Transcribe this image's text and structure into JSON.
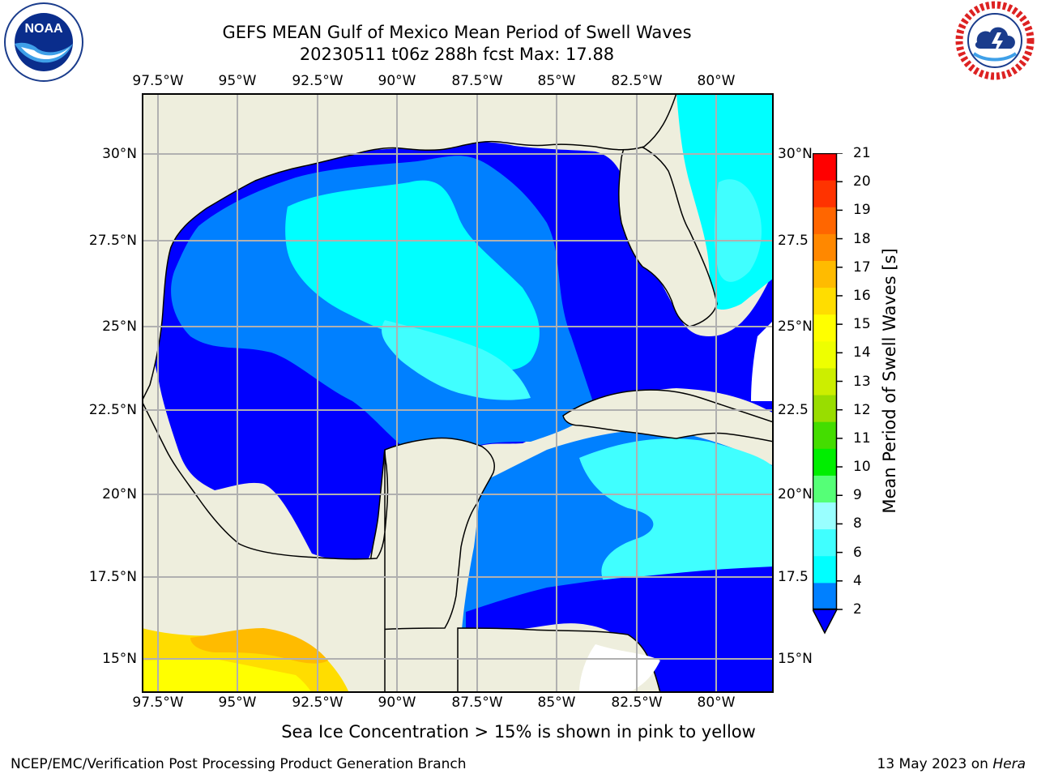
{
  "header": {
    "title_line1": "GEFS MEAN Gulf of Mexico Mean Period of Swell Waves",
    "title_line2": "20230511 t06z 288h fcst   Max: 17.88"
  },
  "logos": {
    "left": {
      "icon": "noaa-logo-icon",
      "text": "NOAA"
    },
    "right": {
      "icon": "national-weather-service-logo-icon"
    }
  },
  "map": {
    "lon_labels": [
      "97.5°W",
      "95°W",
      "92.5°W",
      "90°W",
      "87.5°W",
      "85°W",
      "82.5°W",
      "80°W"
    ],
    "lat_labels": [
      "30°N",
      "27.5°N",
      "25°N",
      "22.5°N",
      "20°N",
      "17.5°N",
      "15°N"
    ],
    "lat_labels_right": [
      "30°N",
      "27.5",
      "25°N",
      "22.5",
      "20°N",
      "17.5",
      "15°N"
    ],
    "colors": {
      "land": "#eeeedd",
      "deep_blue": "#0000ff",
      "blue": "#0080ff",
      "cyan": "#00ffff",
      "light_cyan": "#40ffff",
      "grid": "#b0b0b0"
    }
  },
  "colorbar": {
    "title": "Mean Period of Swell Waves [s]",
    "tick_labels": [
      "21",
      "20",
      "19",
      "18",
      "17",
      "16",
      "15",
      "14",
      "13",
      "12",
      "11",
      "10",
      "9",
      "8",
      "6",
      "4",
      "2"
    ],
    "levels": [
      2,
      4,
      6,
      8,
      9,
      10,
      11,
      12,
      13,
      14,
      15,
      16,
      17,
      18,
      19,
      20,
      21
    ],
    "colors_bottom_to_top": [
      "#0080ff",
      "#00ffff",
      "#40ffff",
      "#99ffff",
      "#55ff77",
      "#00ee00",
      "#44dd00",
      "#99dd00",
      "#ccee00",
      "#eeff00",
      "#ffff00",
      "#ffdd00",
      "#ffbb00",
      "#ff8800",
      "#ff6600",
      "#ff3300",
      "#ff0000"
    ],
    "under_color": "#0000ff"
  },
  "note": "Sea Ice Concentration > 15% is shown in pink to yellow",
  "footer": {
    "left": "NCEP/EMC/Verification Post Processing Product Generation Branch",
    "right_prefix": "13 May 2023 on ",
    "right_machine": "Hera"
  }
}
